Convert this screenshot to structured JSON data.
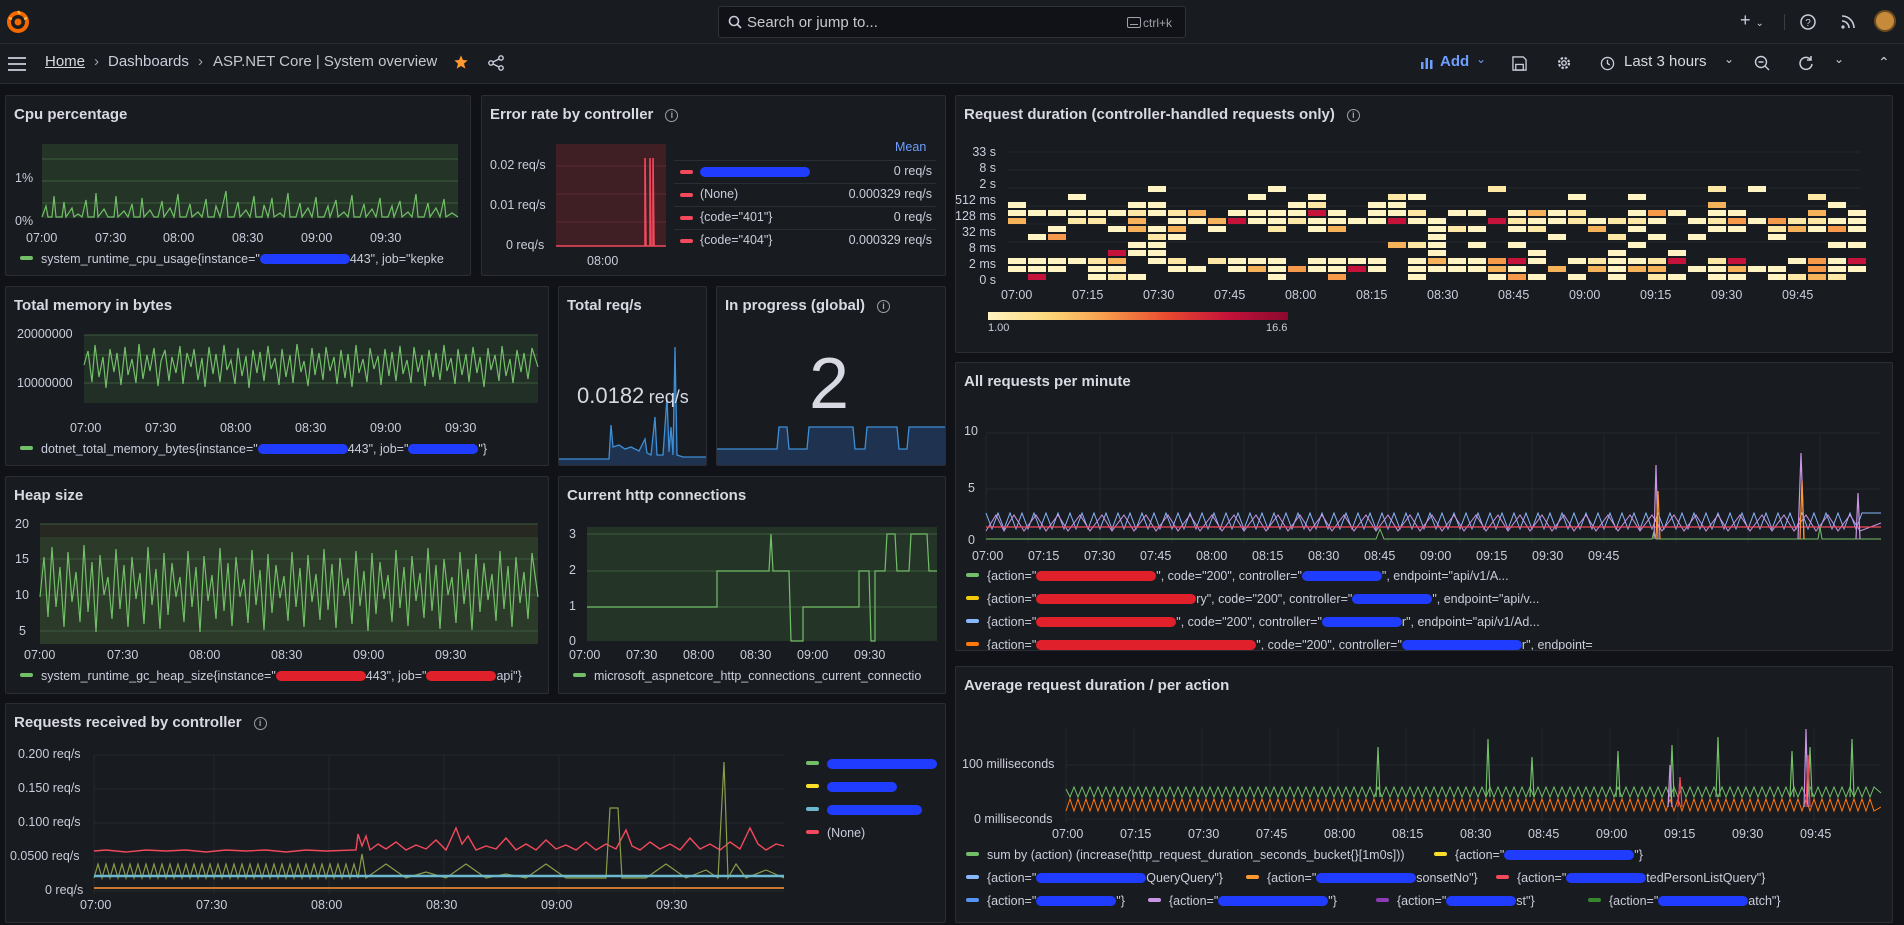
{
  "topbar": {
    "search_placeholder": "Search or jump to...",
    "search_shortcut": "ctrl+k"
  },
  "breadcrumb": {
    "home": "Home",
    "dashboards": "Dashboards",
    "current": "ASP.NET Core | System overview"
  },
  "toolbar": {
    "add_label": "Add",
    "time_range": "Last 3 hours"
  },
  "time_ticks_30": [
    "07:00",
    "07:30",
    "08:00",
    "08:30",
    "09:00",
    "09:30"
  ],
  "time_ticks_15": [
    "07:00",
    "07:15",
    "07:30",
    "07:45",
    "08:00",
    "08:15",
    "08:30",
    "08:45",
    "09:00",
    "09:15",
    "09:30",
    "09:45"
  ],
  "panels": {
    "cpu": {
      "title": "Cpu percentage",
      "yticks": [
        "1%",
        "0%"
      ],
      "legend": "system_runtime_cpu_usage{instance=\"",
      "legend_tail": "443\", job=\"kepke"
    },
    "error_rate": {
      "title": "Error rate by controller",
      "yticks": [
        "0.02 req/s",
        "0.01 req/s",
        "0 req/s"
      ],
      "xtick": "08:00",
      "mean_header": "Mean",
      "rows": [
        {
          "label": "",
          "value": "0 req/s"
        },
        {
          "label": "(None)",
          "value": "0.000329 req/s"
        },
        {
          "label": "{code=\"401\"}",
          "value": "0 req/s"
        },
        {
          "label": "{code=\"404\"}",
          "value": "0.000329 req/s"
        }
      ]
    },
    "request_duration": {
      "title": "Request duration (controller-handled requests only)",
      "yticks": [
        "33 s",
        "8 s",
        "2 s",
        "512 ms",
        "128 ms",
        "32 ms",
        "8 ms",
        "2 ms",
        "0 s"
      ],
      "scale_min": "1.00",
      "scale_max": "16.6"
    },
    "total_memory": {
      "title": "Total memory in bytes",
      "yticks": [
        "20000000",
        "10000000"
      ],
      "legend": "dotnet_total_memory_bytes{instance=\"",
      "legend_tail": "443\", job=\"",
      "legend_end": "\"}"
    },
    "total_req": {
      "title": "Total req/s",
      "value": "0.0182",
      "unit": "req/s"
    },
    "in_progress": {
      "title": "In progress (global)",
      "value": "2"
    },
    "all_requests": {
      "title": "All requests per minute",
      "yticks": [
        "10",
        "5",
        "0"
      ],
      "legend": [
        {
          "color": "#73bf69",
          "head": "{action=\"",
          "tail": "\", code=\"200\", controller=\"",
          "end": "\", endpoint=\"api/v1/A..."
        },
        {
          "color": "#f2cc0c",
          "head": "{action=\"",
          "tail": "ry\", code=\"200\", controller=\"",
          "end": "\", endpoint=\"api/v..."
        },
        {
          "color": "#8ab8ff",
          "head": "{action=\"",
          "tail": "\", code=\"200\", controller=\"",
          "end": "r\", endpoint=\"api/v1/Ad..."
        },
        {
          "color": "#ff780a",
          "head": "{action=\"",
          "tail": "\", code=\"200\", controller=\"",
          "end": "r\", endpoint="
        }
      ]
    },
    "heap": {
      "title": "Heap size",
      "yticks": [
        "20",
        "15",
        "10",
        "5"
      ],
      "legend": "system_runtime_gc_heap_size{instance=\"",
      "legend_tail": "443\", job=\"",
      "legend_end": "api\"}"
    },
    "http_conn": {
      "title": "Current http connections",
      "yticks": [
        "3",
        "2",
        "1",
        "0"
      ],
      "legend": "microsoft_aspnetcore_http_connections_current_connectio"
    },
    "requests_by_controller": {
      "title": "Requests received by controller",
      "yticks": [
        "0.200 req/s",
        "0.150 req/s",
        "0.100 req/s",
        "0.0500 req/s",
        "0 req/s"
      ],
      "legend_none": "(None)"
    },
    "avg_duration": {
      "title": "Average request duration / per action",
      "yticks": [
        "100 milliseconds",
        "0 milliseconds"
      ],
      "legend_sum": "sum by (action) (increase(http_request_duration_seconds_bucket{}[1m0s]))",
      "legend_action": "{action=\"",
      "q1": "QueryQuery\"}",
      "q2": "sonsetNo\"}",
      "q3": "tedPersonListQuery\"}",
      "q4": "st\"}",
      "q5": "atch\"}",
      "q6": "\"}"
    }
  },
  "colors": {
    "green": "#73bf69",
    "red": "#f2495c",
    "blue": "#5794f2",
    "yellow": "#fade2a",
    "orange": "#ff9830",
    "accent": "#6e9fff"
  }
}
